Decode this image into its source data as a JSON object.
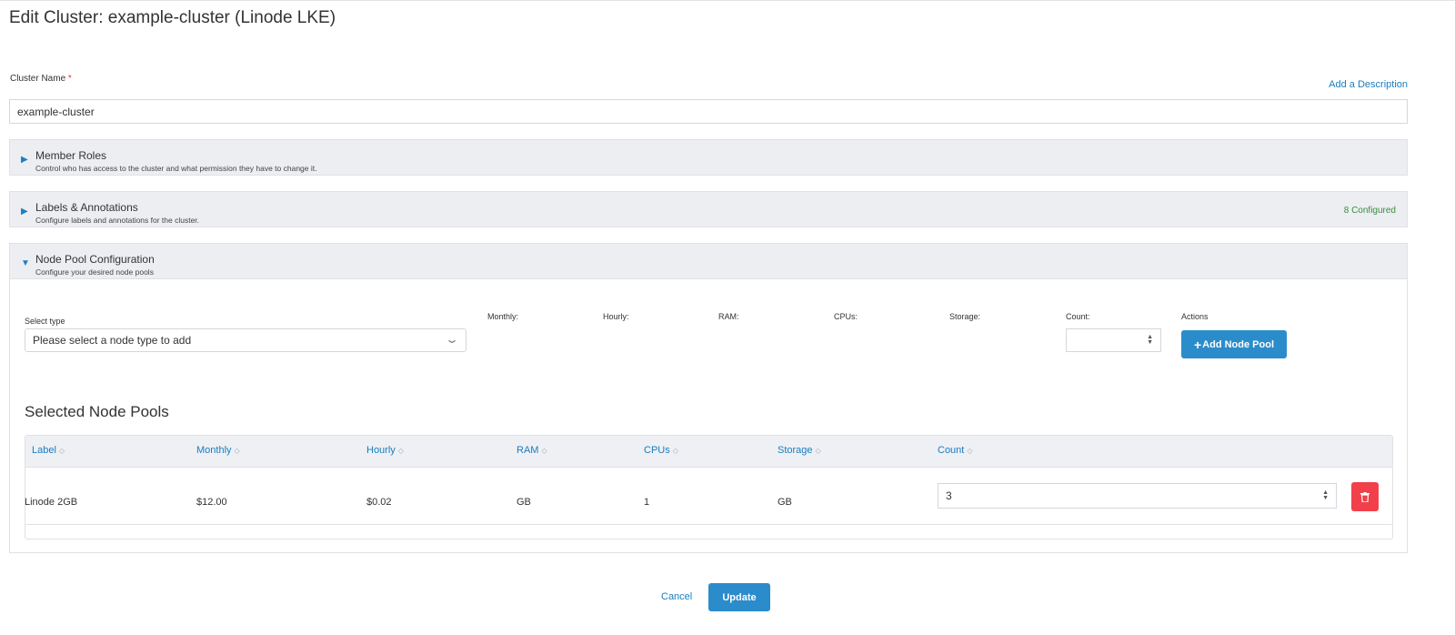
{
  "page": {
    "title": "Edit Cluster: example-cluster (Linode LKE)"
  },
  "cluster_name": {
    "label": "Cluster Name",
    "required": "*",
    "value": "example-cluster",
    "add_description": "Add a Description"
  },
  "panels": [
    {
      "title": "Member Roles",
      "subtitle": "Control who has access to the cluster and what permission they have to change it.",
      "expanded": false
    },
    {
      "title": "Labels & Annotations",
      "subtitle": "Configure labels and annotations for the cluster.",
      "badge": "8 Configured",
      "expanded": false
    },
    {
      "title": "Node Pool Configuration",
      "subtitle": "Configure your desired node pools",
      "expanded": true
    }
  ],
  "node_pool": {
    "select_type_label": "Select type",
    "select_placeholder": "Please select a node type to add",
    "monthly": "Monthly:",
    "hourly": "Hourly:",
    "ram": "RAM:",
    "cpus": "CPUs:",
    "storage": "Storage:",
    "count": "Count:",
    "actions": "Actions",
    "add_button": "Add Node Pool"
  },
  "selected": {
    "title": "Selected Node Pools",
    "columns": [
      "Label",
      "Monthly",
      "Hourly",
      "RAM",
      "CPUs",
      "Storage",
      "Count"
    ],
    "rows": [
      {
        "label": "Linode 2GB",
        "monthly": "$12.00",
        "hourly": "$0.02",
        "ram": "GB",
        "cpus": "1",
        "storage": "GB",
        "count": "3"
      }
    ]
  },
  "footer": {
    "cancel": "Cancel",
    "update": "Update"
  },
  "colors": {
    "accent": "#2b8ccb",
    "danger": "#f2404a",
    "success": "#3c8d3c"
  }
}
